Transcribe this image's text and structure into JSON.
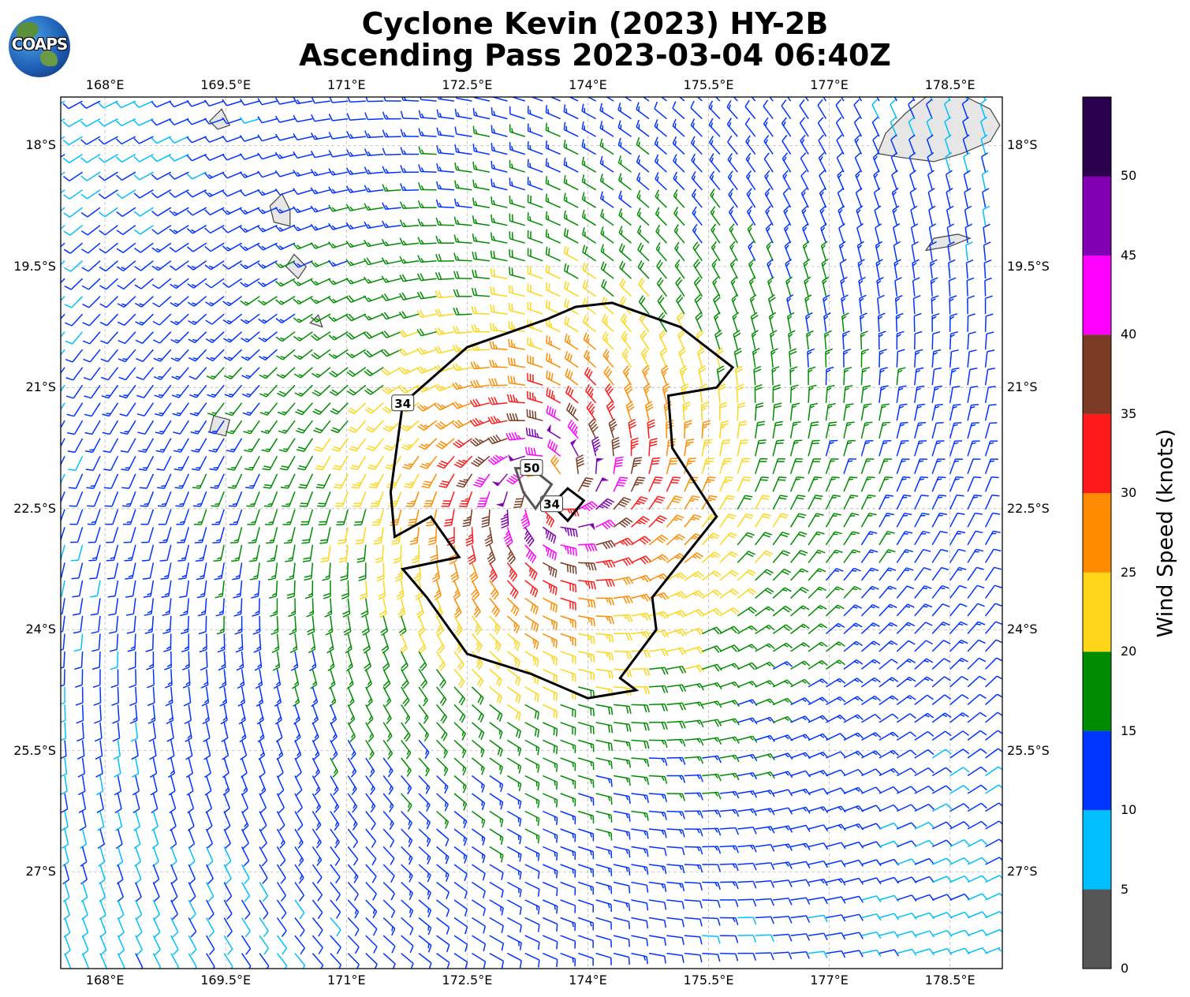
{
  "title": {
    "line1": "Cyclone Kevin (2023) HY-2B",
    "line2": "Ascending Pass 2023-03-04 06:40Z"
  },
  "logo": {
    "text": "COAPS"
  },
  "map": {
    "lon_range": [
      167.45,
      179.15
    ],
    "lat_range": [
      -28.2,
      -17.4
    ],
    "center": {
      "lon": 173.55,
      "lat": -22.25
    },
    "lon_ticks": [
      "168°E",
      "169.5°E",
      "171°E",
      "172.5°E",
      "174°E",
      "175.5°E",
      "177°E",
      "178.5°E"
    ],
    "lon_tick_values": [
      168,
      169.5,
      171,
      172.5,
      174,
      175.5,
      177,
      178.5
    ],
    "lat_ticks": [
      "18°S",
      "19.5°S",
      "21°S",
      "22.5°S",
      "24°S",
      "25.5°S",
      "27°S"
    ],
    "lat_tick_values": [
      -18,
      -19.5,
      -21,
      -22.5,
      -24,
      -25.5,
      -27
    ],
    "gridlines": true,
    "islands": [
      {
        "name_hidden": true,
        "points": [
          [
            179.0,
            -17.55
          ],
          [
            178.6,
            -17.35
          ],
          [
            178.2,
            -17.4
          ],
          [
            177.95,
            -17.6
          ],
          [
            177.7,
            -17.85
          ],
          [
            177.6,
            -18.1
          ],
          [
            177.9,
            -18.15
          ],
          [
            178.3,
            -18.2
          ],
          [
            178.65,
            -18.1
          ],
          [
            179.0,
            -17.95
          ],
          [
            179.12,
            -17.75
          ]
        ]
      },
      {
        "name_hidden": true,
        "points": [
          [
            170.2,
            -18.6
          ],
          [
            170.05,
            -18.75
          ],
          [
            170.1,
            -18.95
          ],
          [
            170.3,
            -19.0
          ],
          [
            170.3,
            -18.8
          ]
        ]
      },
      {
        "name_hidden": true,
        "points": [
          [
            169.45,
            -17.55
          ],
          [
            169.3,
            -17.7
          ],
          [
            169.4,
            -17.8
          ],
          [
            169.55,
            -17.75
          ]
        ]
      },
      {
        "name_hidden": true,
        "points": [
          [
            170.35,
            -19.35
          ],
          [
            170.25,
            -19.5
          ],
          [
            170.4,
            -19.65
          ],
          [
            170.5,
            -19.5
          ]
        ]
      },
      {
        "name_hidden": true,
        "points": [
          [
            169.35,
            -21.35
          ],
          [
            169.3,
            -21.55
          ],
          [
            169.5,
            -21.6
          ],
          [
            169.55,
            -21.4
          ]
        ]
      },
      {
        "name_hidden": true,
        "points": [
          [
            178.6,
            -19.1
          ],
          [
            178.3,
            -19.15
          ],
          [
            178.2,
            -19.3
          ],
          [
            178.5,
            -19.25
          ],
          [
            178.75,
            -19.15
          ]
        ]
      },
      {
        "name_hidden": true,
        "points": [
          [
            170.65,
            -20.1
          ],
          [
            170.55,
            -20.2
          ],
          [
            170.7,
            -20.25
          ]
        ]
      }
    ]
  },
  "wind_field": {
    "units": "knots",
    "max_wind_kt": 51,
    "rmw_deg": 0.55,
    "decay_radius_deg": 6.0,
    "spacing_deg": 0.22,
    "inflow_angle_deg": 22,
    "swath_right_edge_lon": 179.15
  },
  "contours": [
    {
      "label": "34",
      "level_kt": 34,
      "points": [
        [
          173.85,
          -20.0
        ],
        [
          174.3,
          -19.95
        ],
        [
          175.15,
          -20.25
        ],
        [
          175.8,
          -20.75
        ],
        [
          175.6,
          -21.0
        ],
        [
          175.0,
          -21.1
        ],
        [
          175.05,
          -21.75
        ],
        [
          175.6,
          -22.6
        ],
        [
          175.2,
          -23.1
        ],
        [
          174.8,
          -23.6
        ],
        [
          174.85,
          -24.0
        ],
        [
          174.4,
          -24.6
        ],
        [
          174.6,
          -24.75
        ],
        [
          174.0,
          -24.85
        ],
        [
          173.3,
          -24.55
        ],
        [
          172.5,
          -24.3
        ],
        [
          172.0,
          -23.6
        ],
        [
          171.7,
          -23.25
        ],
        [
          172.4,
          -23.1
        ],
        [
          172.05,
          -22.6
        ],
        [
          171.6,
          -22.85
        ],
        [
          171.55,
          -22.3
        ],
        [
          171.7,
          -21.2
        ],
        [
          172.5,
          -20.5
        ],
        [
          173.5,
          -20.15
        ]
      ]
    },
    {
      "label": "34",
      "level_kt": 34,
      "points": [
        [
          173.55,
          -22.45
        ],
        [
          173.75,
          -22.25
        ],
        [
          173.95,
          -22.4
        ],
        [
          173.75,
          -22.65
        ]
      ]
    },
    {
      "label": "50",
      "level_kt": 50,
      "points": [
        [
          173.3,
          -22.0
        ],
        [
          173.55,
          -22.2
        ],
        [
          173.35,
          -22.5
        ],
        [
          173.2,
          -22.3
        ],
        [
          173.1,
          -22.0
        ]
      ]
    }
  ],
  "colorbar": {
    "label": "Wind Speed (knots)",
    "ticks": [
      "0",
      "5",
      "10",
      "15",
      "20",
      "25",
      "30",
      "35",
      "40",
      "45",
      "50"
    ],
    "bins": [
      {
        "min": 0,
        "max": 5,
        "color": "#555555"
      },
      {
        "min": 5,
        "max": 10,
        "color": "#00bfff"
      },
      {
        "min": 10,
        "max": 15,
        "color": "#0033ff"
      },
      {
        "min": 15,
        "max": 20,
        "color": "#008c00"
      },
      {
        "min": 20,
        "max": 25,
        "color": "#ffd51a"
      },
      {
        "min": 25,
        "max": 30,
        "color": "#ff8c00"
      },
      {
        "min": 30,
        "max": 35,
        "color": "#ff1a1a"
      },
      {
        "min": 35,
        "max": 40,
        "color": "#7b3a24"
      },
      {
        "min": 40,
        "max": 45,
        "color": "#ff00ff"
      },
      {
        "min": 45,
        "max": 50,
        "color": "#8000b3"
      },
      {
        "min": 50,
        "max": 55,
        "color": "#2b004d"
      }
    ]
  }
}
